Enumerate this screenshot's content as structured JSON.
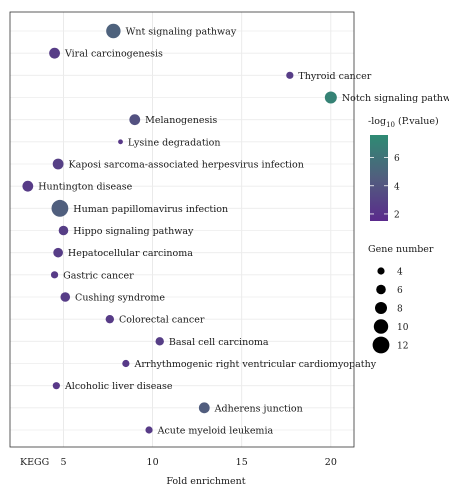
{
  "chart_data": {
    "type": "scatter",
    "xlabel": "Fold enrichment",
    "ylabel": "KEGG",
    "xlim": [
      2,
      21.3
    ],
    "xticks": [
      5,
      10,
      15,
      20
    ],
    "grid": true,
    "points": [
      {
        "name": "Wnt signaling pathway",
        "fold_enrichment": 7.8,
        "neg_log10_p": 4.8,
        "gene_number": 10
      },
      {
        "name": "Viral carcinogenesis",
        "fold_enrichment": 4.5,
        "neg_log10_p": 2.6,
        "gene_number": 7
      },
      {
        "name": "Thyroid cancer",
        "fold_enrichment": 17.7,
        "neg_log10_p": 2.6,
        "gene_number": 4
      },
      {
        "name": "Notch signaling pathway",
        "fold_enrichment": 20.0,
        "neg_log10_p": 7.0,
        "gene_number": 8
      },
      {
        "name": "Melanogenesis",
        "fold_enrichment": 9.0,
        "neg_log10_p": 3.8,
        "gene_number": 7
      },
      {
        "name": "Lysine degradation",
        "fold_enrichment": 8.2,
        "neg_log10_p": 2.3,
        "gene_number": 2
      },
      {
        "name": "Kaposi sarcoma-associated herpesvirus infection",
        "fold_enrichment": 4.7,
        "neg_log10_p": 2.8,
        "gene_number": 7
      },
      {
        "name": "Huntington disease",
        "fold_enrichment": 3.0,
        "neg_log10_p": 2.5,
        "gene_number": 7
      },
      {
        "name": "Human papillomavirus infection",
        "fold_enrichment": 4.8,
        "neg_log10_p": 4.6,
        "gene_number": 12
      },
      {
        "name": "Hippo signaling pathway",
        "fold_enrichment": 5.0,
        "neg_log10_p": 2.7,
        "gene_number": 6
      },
      {
        "name": "Hepatocellular carcinoma",
        "fold_enrichment": 4.7,
        "neg_log10_p": 2.6,
        "gene_number": 6
      },
      {
        "name": "Gastric cancer",
        "fold_enrichment": 4.5,
        "neg_log10_p": 2.5,
        "gene_number": 4
      },
      {
        "name": "Cushing syndrome",
        "fold_enrichment": 5.1,
        "neg_log10_p": 2.6,
        "gene_number": 6
      },
      {
        "name": "Colorectal cancer",
        "fold_enrichment": 7.6,
        "neg_log10_p": 2.5,
        "gene_number": 5
      },
      {
        "name": "Basal cell carcinoma",
        "fold_enrichment": 10.4,
        "neg_log10_p": 2.7,
        "gene_number": 5
      },
      {
        "name": "Arrhythmogenic right ventricular cardiomyopathy",
        "fold_enrichment": 8.5,
        "neg_log10_p": 2.4,
        "gene_number": 4
      },
      {
        "name": "Alcoholic liver disease",
        "fold_enrichment": 4.6,
        "neg_log10_p": 2.3,
        "gene_number": 4
      },
      {
        "name": "Adherens junction",
        "fold_enrichment": 12.9,
        "neg_log10_p": 4.5,
        "gene_number": 7
      },
      {
        "name": "Acute myeloid leukemia",
        "fold_enrichment": 9.8,
        "neg_log10_p": 2.5,
        "gene_number": 4
      }
    ],
    "color_legend": {
      "title_prefix": "-log",
      "title_sub": "10",
      "title_suffix": " (P.value)",
      "range": [
        1.5,
        7.6
      ],
      "ticks": [
        2,
        4,
        6
      ],
      "low_color": "#5a2a8c",
      "mid_color": "#515e7e",
      "high_color": "#2e8b73"
    },
    "size_legend": {
      "title": "Gene number",
      "values": [
        4,
        6,
        8,
        10,
        12
      ]
    },
    "legend_position": "right"
  }
}
